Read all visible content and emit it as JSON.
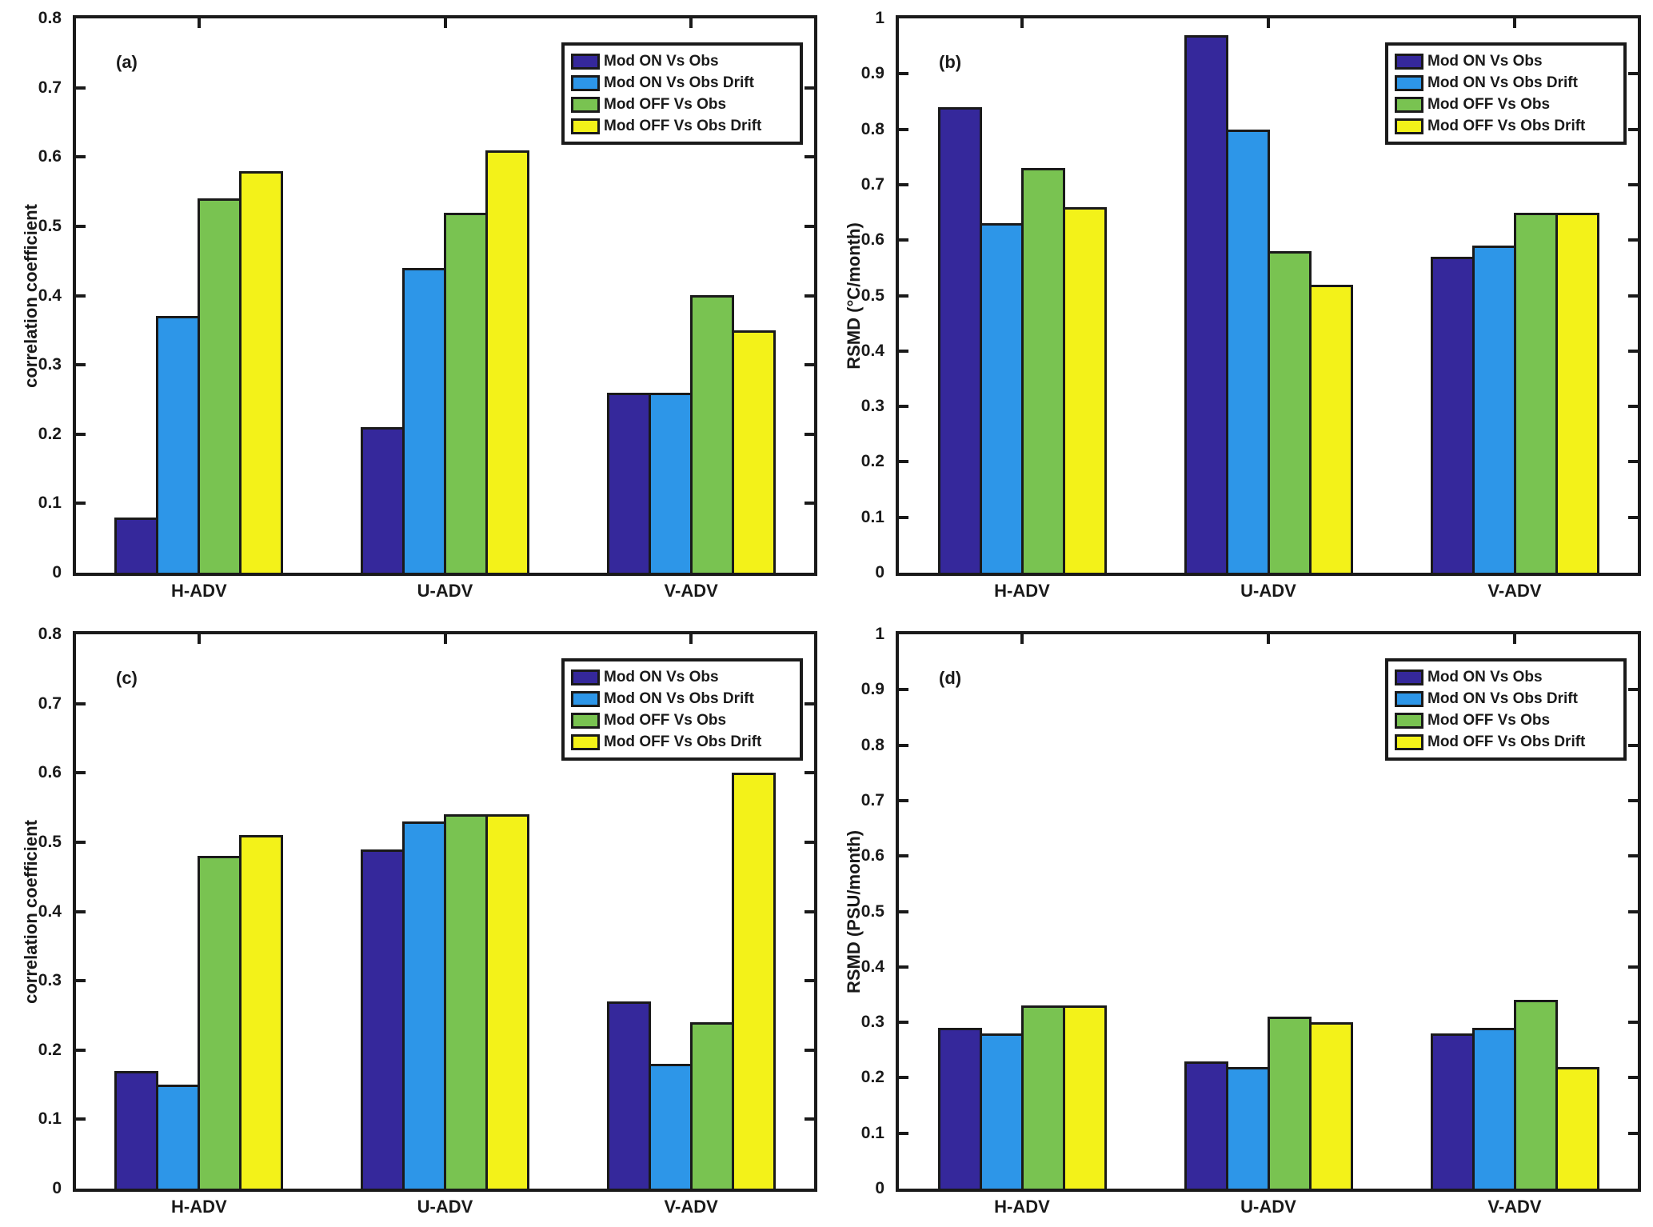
{
  "chart_data": [
    {
      "id": "a",
      "type": "bar",
      "panel_label": "(a)",
      "ylabel": "correlation coefficient",
      "xlabel": "",
      "ylim": [
        0,
        0.8
      ],
      "ytick_step": 0.1,
      "ytick_labels": [
        "0",
        "0.1",
        "0.2",
        "0.3",
        "0.4",
        "0.5",
        "0.6",
        "0.7",
        "0.8"
      ],
      "categories": [
        "H-ADV",
        "U-ADV",
        "V-ADV"
      ],
      "series": [
        {
          "name": "Mod ON Vs Obs",
          "color": "#35289B",
          "values": [
            0.08,
            0.21,
            0.26
          ]
        },
        {
          "name": "Mod ON Vs Obs Drift",
          "color": "#2D96E8",
          "values": [
            0.37,
            0.44,
            0.26
          ]
        },
        {
          "name": "Mod OFF Vs Obs",
          "color": "#79C351",
          "values": [
            0.54,
            0.52,
            0.4
          ]
        },
        {
          "name": "Mod OFF Vs Obs Drift",
          "color": "#F3F219",
          "values": [
            0.58,
            0.61,
            0.35
          ]
        }
      ],
      "legend_position": "top-right",
      "grid": false
    },
    {
      "id": "b",
      "type": "bar",
      "panel_label": "(b)",
      "ylabel": "RSMD (°C/month)",
      "xlabel": "",
      "ylim": [
        0,
        1
      ],
      "ytick_step": 0.1,
      "ytick_labels": [
        "0",
        "0.1",
        "0.2",
        "0.3",
        "0.4",
        "0.5",
        "0.6",
        "0.7",
        "0.8",
        "0.9",
        "1"
      ],
      "categories": [
        "H-ADV",
        "U-ADV",
        "V-ADV"
      ],
      "series": [
        {
          "name": "Mod ON Vs Obs",
          "color": "#35289B",
          "values": [
            0.84,
            0.97,
            0.57
          ]
        },
        {
          "name": "Mod ON Vs Obs Drift",
          "color": "#2D96E8",
          "values": [
            0.63,
            0.8,
            0.59
          ]
        },
        {
          "name": "Mod OFF Vs Obs",
          "color": "#79C351",
          "values": [
            0.73,
            0.58,
            0.65
          ]
        },
        {
          "name": "Mod OFF Vs Obs Drift",
          "color": "#F3F219",
          "values": [
            0.66,
            0.52,
            0.65
          ]
        }
      ],
      "legend_position": "top-right",
      "grid": false
    },
    {
      "id": "c",
      "type": "bar",
      "panel_label": "(c)",
      "ylabel": "correlation coefficient",
      "xlabel": "",
      "ylim": [
        0,
        0.8
      ],
      "ytick_step": 0.1,
      "ytick_labels": [
        "0",
        "0.1",
        "0.2",
        "0.3",
        "0.4",
        "0.5",
        "0.6",
        "0.7",
        "0.8"
      ],
      "categories": [
        "H-ADV",
        "U-ADV",
        "V-ADV"
      ],
      "series": [
        {
          "name": "Mod ON Vs Obs",
          "color": "#35289B",
          "values": [
            0.17,
            0.49,
            0.27
          ]
        },
        {
          "name": "Mod ON Vs Obs Drift",
          "color": "#2D96E8",
          "values": [
            0.15,
            0.53,
            0.18
          ]
        },
        {
          "name": "Mod OFF Vs Obs",
          "color": "#79C351",
          "values": [
            0.48,
            0.54,
            0.24
          ]
        },
        {
          "name": "Mod OFF Vs Obs Drift",
          "color": "#F3F219",
          "values": [
            0.51,
            0.54,
            0.6
          ]
        }
      ],
      "legend_position": "top-right",
      "grid": false
    },
    {
      "id": "d",
      "type": "bar",
      "panel_label": "(d)",
      "ylabel": "RSMD (PSU/month)",
      "xlabel": "",
      "ylim": [
        0,
        1
      ],
      "ytick_step": 0.1,
      "ytick_labels": [
        "0",
        "0.1",
        "0.2",
        "0.3",
        "0.4",
        "0.5",
        "0.6",
        "0.7",
        "0.8",
        "0.9",
        "1"
      ],
      "categories": [
        "H-ADV",
        "U-ADV",
        "V-ADV"
      ],
      "series": [
        {
          "name": "Mod ON Vs Obs",
          "color": "#35289B",
          "values": [
            0.29,
            0.23,
            0.28
          ]
        },
        {
          "name": "Mod ON Vs Obs Drift",
          "color": "#2D96E8",
          "values": [
            0.28,
            0.22,
            0.29
          ]
        },
        {
          "name": "Mod OFF Vs Obs",
          "color": "#79C351",
          "values": [
            0.33,
            0.31,
            0.34
          ]
        },
        {
          "name": "Mod OFF Vs Obs Drift",
          "color": "#F3F219",
          "values": [
            0.33,
            0.3,
            0.22
          ]
        }
      ],
      "legend_position": "top-right",
      "grid": false
    }
  ]
}
